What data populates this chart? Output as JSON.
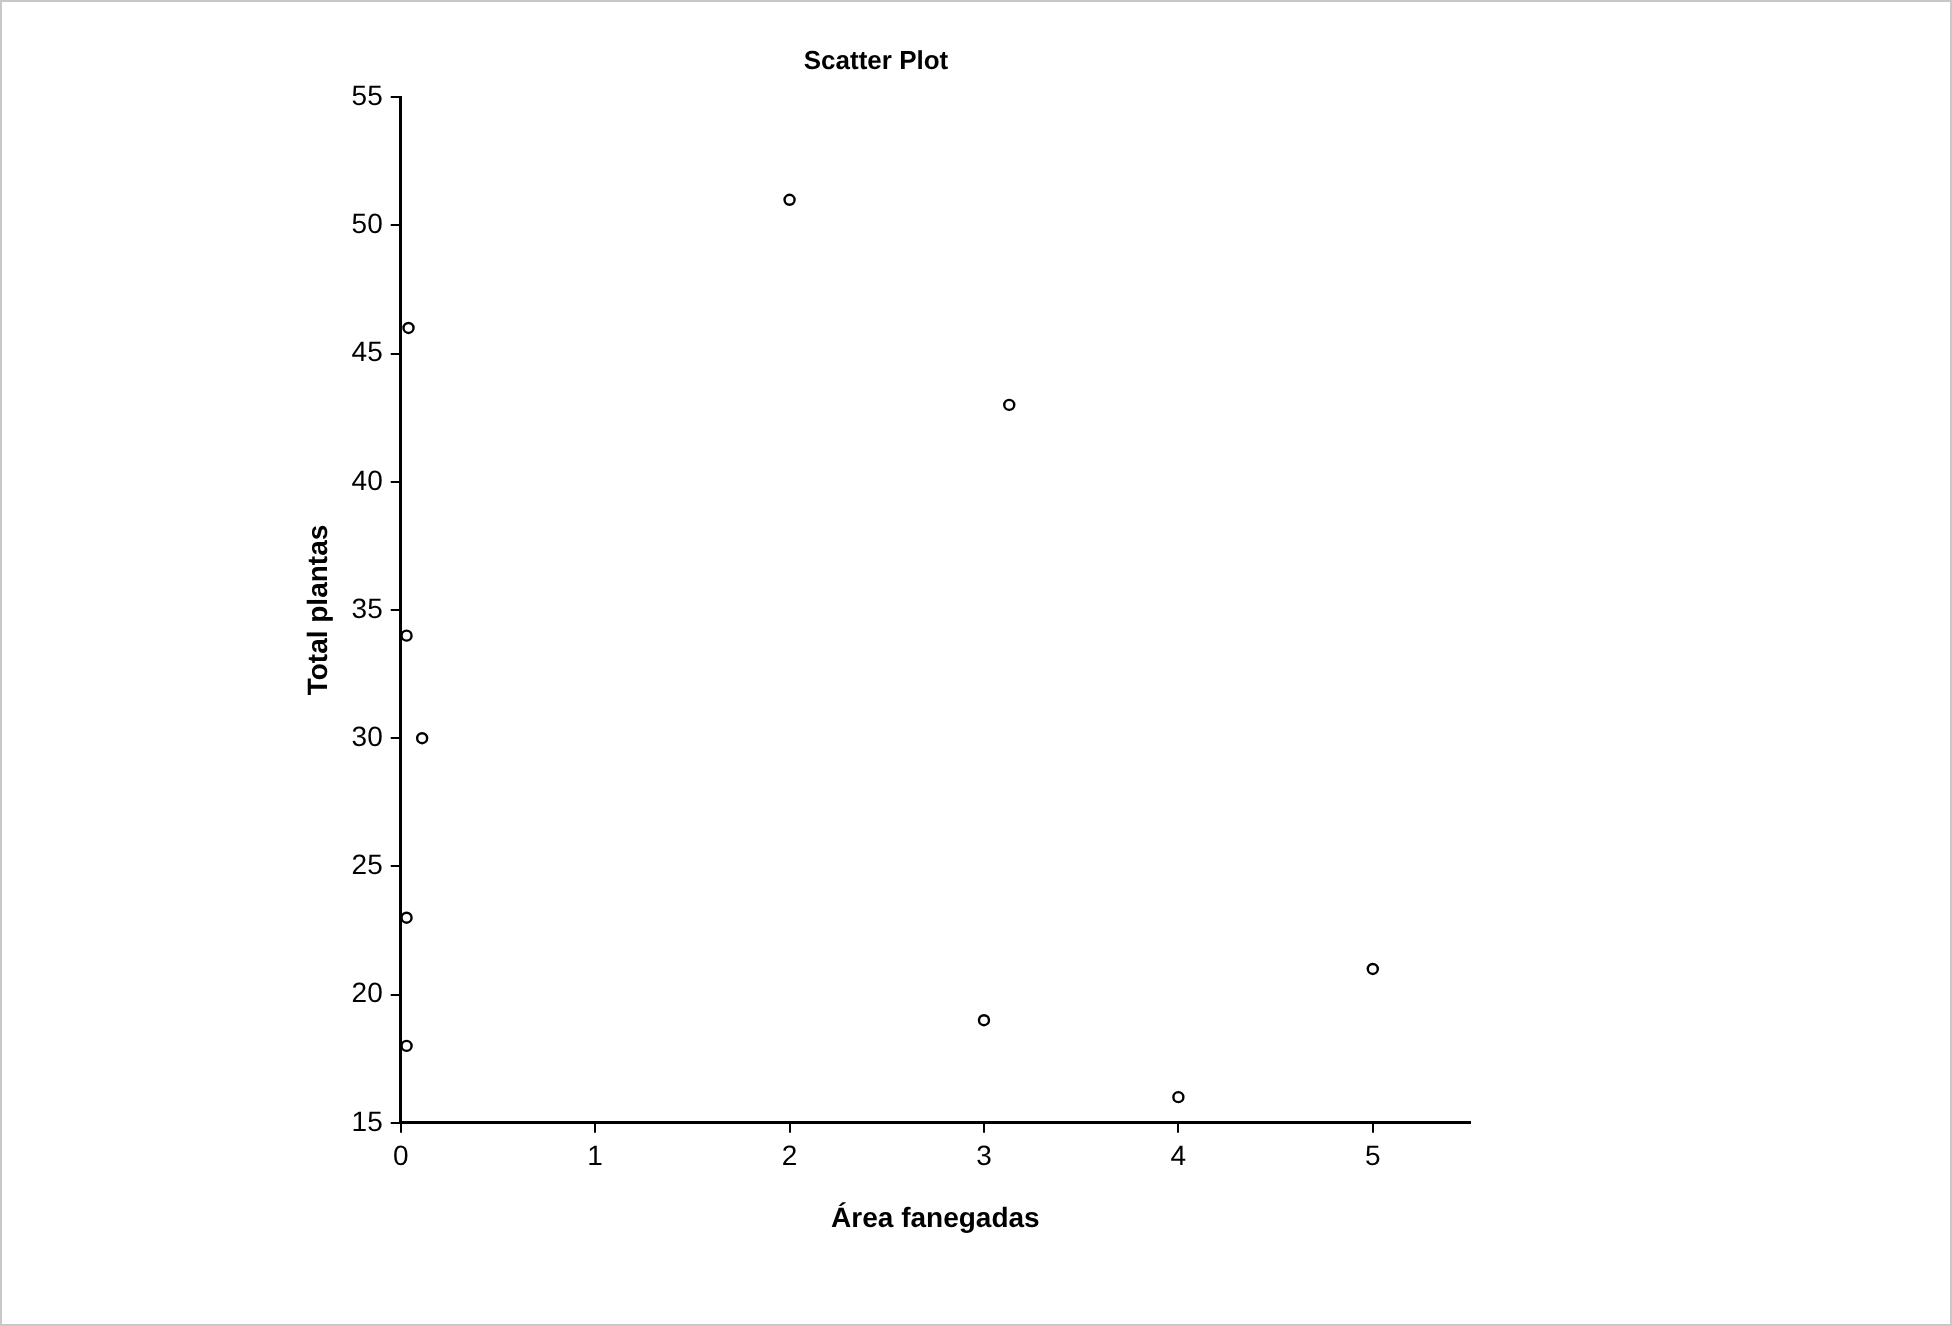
{
  "chart_data": {
    "type": "scatter",
    "title": "Scatter Plot",
    "xlabel": "Área fanegadas",
    "ylabel": "Total plantas",
    "x": [
      0.04,
      0.03,
      0.11,
      0.03,
      0.03,
      2,
      3.13,
      3,
      4,
      5
    ],
    "series": [
      {
        "color": "#000000",
        "values": [
          46,
          34,
          30,
          23,
          18,
          51,
          43,
          19,
          16,
          21
        ]
      }
    ],
    "xlim": [
      0,
      5.5
    ],
    "xticks": [
      0,
      1,
      2,
      3,
      4,
      5
    ],
    "ylim": [
      15,
      55
    ],
    "yticks": [
      15,
      20,
      25,
      30,
      35,
      40,
      45,
      50,
      55
    ],
    "marker": "circle",
    "grid": false,
    "legend": false
  }
}
